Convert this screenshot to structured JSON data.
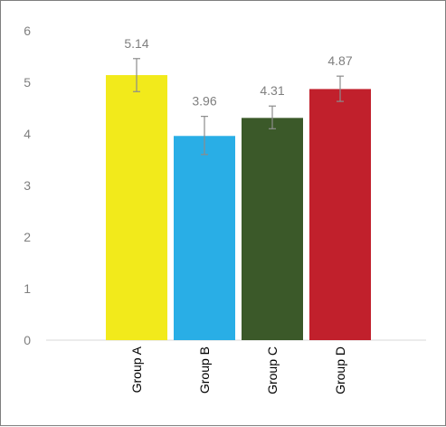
{
  "chart_data": {
    "type": "bar",
    "title": "",
    "xlabel": "",
    "ylabel": "",
    "categories": [
      "Group A",
      "Group B",
      "Group C",
      "Group D"
    ],
    "values": [
      5.14,
      3.96,
      4.31,
      4.87
    ],
    "value_labels": [
      "5.14",
      "3.96",
      "4.31",
      "4.87"
    ],
    "error_bars": [
      {
        "low": 4.82,
        "high": 5.46
      },
      {
        "low": 3.6,
        "high": 4.34
      },
      {
        "low": 4.1,
        "high": 4.54
      },
      {
        "low": 4.63,
        "high": 5.12
      }
    ],
    "bar_colors": [
      "#f2ea1b",
      "#29aee6",
      "#3b5929",
      "#c1202c"
    ],
    "ylim": [
      0,
      6
    ],
    "yticks": [
      0,
      1,
      2,
      3,
      4,
      5,
      6
    ],
    "ytick_labels": [
      "0",
      "1",
      "2",
      "3",
      "4",
      "5",
      "6"
    ],
    "grid": false,
    "legend": "none",
    "x_tick_label_rotation": "vertical"
  }
}
